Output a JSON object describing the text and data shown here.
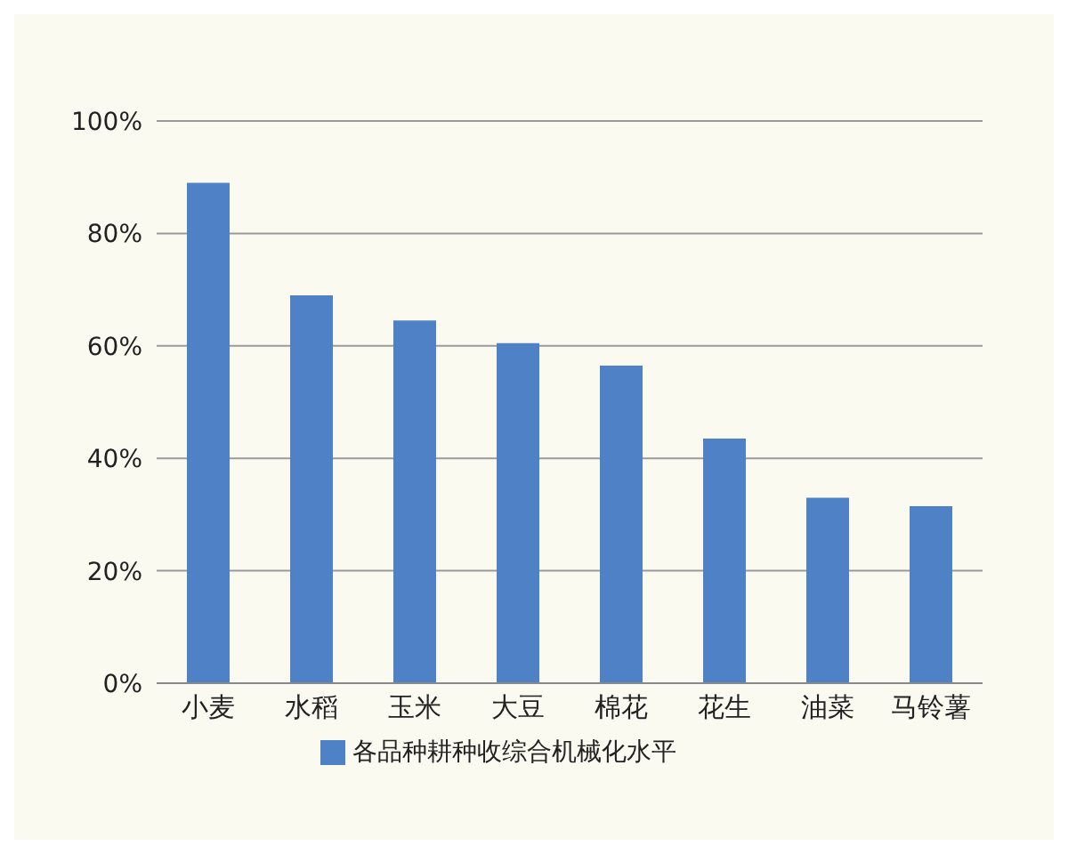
{
  "chart_data": {
    "type": "bar",
    "categories": [
      "小麦",
      "水稻",
      "玉米",
      "大豆",
      "棉花",
      "花生",
      "油菜",
      "马铃薯"
    ],
    "series": [
      {
        "name": "各品种耕种收综合机械化水平",
        "color": "#4f81c7",
        "values": [
          89,
          69,
          64.5,
          60.5,
          56.5,
          43.5,
          33,
          31.5
        ]
      }
    ],
    "ylim": [
      0,
      100
    ],
    "yticks": [
      {
        "value": 0,
        "label": "0%"
      },
      {
        "value": 20,
        "label": "20%"
      },
      {
        "value": 40,
        "label": "40%"
      },
      {
        "value": 60,
        "label": "60%"
      },
      {
        "value": 80,
        "label": "80%"
      },
      {
        "value": 100,
        "label": "100%"
      }
    ],
    "grid": "y",
    "legend": "bottom"
  }
}
